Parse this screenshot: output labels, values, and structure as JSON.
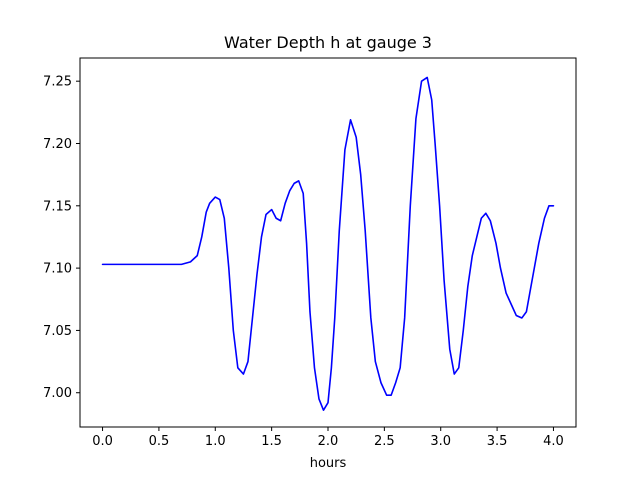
{
  "chart_data": {
    "type": "line",
    "title": "Water Depth h at gauge 3",
    "xlabel": "hours",
    "ylabel": "",
    "xlim": [
      -0.2,
      4.2
    ],
    "ylim": [
      6.9725,
      7.2686
    ],
    "xticks": [
      0.0,
      0.5,
      1.0,
      1.5,
      2.0,
      2.5,
      3.0,
      3.5,
      4.0
    ],
    "xtick_labels": [
      "0.0",
      "0.5",
      "1.0",
      "1.5",
      "2.0",
      "2.5",
      "3.0",
      "3.5",
      "4.0"
    ],
    "yticks": [
      7.0,
      7.05,
      7.1,
      7.15,
      7.2,
      7.25
    ],
    "ytick_labels": [
      "7.00",
      "7.05",
      "7.10",
      "7.15",
      "7.20",
      "7.25"
    ],
    "grid": false,
    "legend": "none",
    "series": [
      {
        "color": "#0000ff",
        "x": [
          0.0,
          0.2,
          0.4,
          0.6,
          0.7,
          0.78,
          0.84,
          0.88,
          0.92,
          0.95,
          1.0,
          1.04,
          1.08,
          1.12,
          1.16,
          1.2,
          1.25,
          1.29,
          1.33,
          1.37,
          1.41,
          1.45,
          1.5,
          1.54,
          1.58,
          1.62,
          1.66,
          1.7,
          1.74,
          1.78,
          1.81,
          1.84,
          1.88,
          1.92,
          1.96,
          2.0,
          2.03,
          2.06,
          2.1,
          2.15,
          2.2,
          2.25,
          2.29,
          2.33,
          2.38,
          2.42,
          2.47,
          2.52,
          2.56,
          2.6,
          2.64,
          2.68,
          2.73,
          2.78,
          2.83,
          2.88,
          2.92,
          2.95,
          2.99,
          3.03,
          3.08,
          3.12,
          3.16,
          3.2,
          3.24,
          3.28,
          3.32,
          3.36,
          3.4,
          3.44,
          3.49,
          3.53,
          3.58,
          3.63,
          3.67,
          3.72,
          3.76,
          3.79,
          3.83,
          3.87,
          3.92,
          3.96,
          4.0
        ],
        "y": [
          7.103,
          7.103,
          7.103,
          7.103,
          7.103,
          7.105,
          7.11,
          7.125,
          7.145,
          7.152,
          7.157,
          7.155,
          7.14,
          7.1,
          7.05,
          7.02,
          7.015,
          7.025,
          7.06,
          7.095,
          7.125,
          7.143,
          7.147,
          7.14,
          7.138,
          7.152,
          7.162,
          7.168,
          7.17,
          7.16,
          7.12,
          7.065,
          7.02,
          6.995,
          6.986,
          6.992,
          7.02,
          7.06,
          7.13,
          7.195,
          7.219,
          7.205,
          7.175,
          7.13,
          7.06,
          7.025,
          7.008,
          6.998,
          6.998,
          7.008,
          7.02,
          7.06,
          7.15,
          7.22,
          7.25,
          7.253,
          7.235,
          7.2,
          7.15,
          7.09,
          7.035,
          7.015,
          7.02,
          7.05,
          7.085,
          7.11,
          7.125,
          7.14,
          7.144,
          7.138,
          7.12,
          7.1,
          7.08,
          7.07,
          7.062,
          7.06,
          7.065,
          7.08,
          7.1,
          7.12,
          7.14,
          7.15,
          7.15
        ]
      }
    ]
  }
}
